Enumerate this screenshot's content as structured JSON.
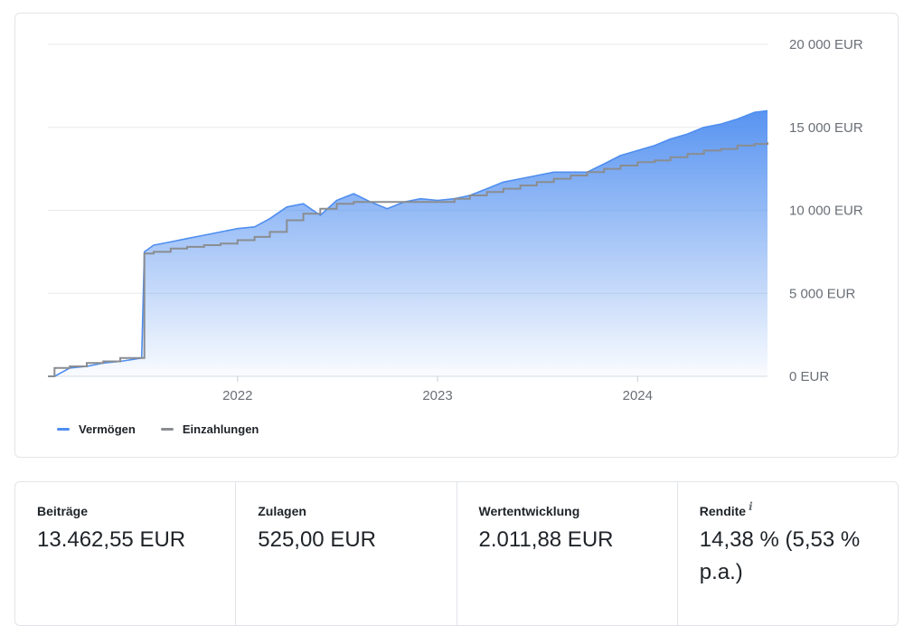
{
  "chart_data": {
    "type": "area",
    "title": "",
    "xlabel": "",
    "ylabel": "",
    "ylim": [
      0,
      20000
    ],
    "xlim": [
      "2021-01-20",
      "2024-08-25"
    ],
    "y_tick_labels": [
      "0 EUR",
      "5 000 EUR",
      "10 000 EUR",
      "15 000 EUR",
      "20 000 EUR"
    ],
    "y_ticks": [
      0,
      5000,
      10000,
      15000,
      20000
    ],
    "x_tick_labels": [
      "2022",
      "2023",
      "2024"
    ],
    "x_ticks": [
      "2022-01-01",
      "2023-01-01",
      "2024-01-01"
    ],
    "grid": "horizontal",
    "legend_placement": "bottom-left",
    "series": [
      {
        "name": "Vermögen",
        "style": "area",
        "color": "#4f8ef0",
        "x": [
          "2021-02-01",
          "2021-03-01",
          "2021-04-01",
          "2021-05-01",
          "2021-06-01",
          "2021-07-10",
          "2021-07-15",
          "2021-08-01",
          "2021-09-01",
          "2021-10-01",
          "2021-11-01",
          "2021-12-01",
          "2022-01-01",
          "2022-02-01",
          "2022-03-01",
          "2022-04-01",
          "2022-05-01",
          "2022-06-01",
          "2022-07-01",
          "2022-08-01",
          "2022-09-01",
          "2022-10-01",
          "2022-11-01",
          "2022-12-01",
          "2023-01-01",
          "2023-02-01",
          "2023-03-01",
          "2023-04-01",
          "2023-05-01",
          "2023-06-01",
          "2023-07-01",
          "2023-08-01",
          "2023-09-01",
          "2023-10-01",
          "2023-11-01",
          "2023-12-01",
          "2024-01-01",
          "2024-02-01",
          "2024-03-01",
          "2024-04-01",
          "2024-05-01",
          "2024-06-01",
          "2024-07-01",
          "2024-08-01",
          "2024-08-25"
        ],
        "values": [
          0,
          500,
          600,
          800,
          900,
          1100,
          7500,
          7900,
          8100,
          8300,
          8500,
          8700,
          8900,
          9000,
          9500,
          10200,
          10400,
          9700,
          10600,
          11000,
          10500,
          10100,
          10500,
          10700,
          10600,
          10700,
          10900,
          11300,
          11700,
          11900,
          12100,
          12300,
          12300,
          12300,
          12800,
          13300,
          13600,
          13900,
          14300,
          14600,
          15000,
          15200,
          15500,
          15900,
          16000
        ]
      },
      {
        "name": "Einzahlungen",
        "style": "step-line",
        "color": "#8a8d91",
        "x": [
          "2021-01-20",
          "2021-02-01",
          "2021-03-01",
          "2021-04-01",
          "2021-05-01",
          "2021-06-01",
          "2021-07-15",
          "2021-08-01",
          "2021-09-01",
          "2021-10-01",
          "2021-11-01",
          "2021-12-01",
          "2022-01-01",
          "2022-02-01",
          "2022-03-01",
          "2022-04-01",
          "2022-05-01",
          "2022-06-01",
          "2022-07-01",
          "2022-08-01",
          "2022-09-01",
          "2022-10-01",
          "2022-11-01",
          "2022-12-01",
          "2023-01-01",
          "2023-02-01",
          "2023-03-01",
          "2023-04-01",
          "2023-05-01",
          "2023-06-01",
          "2023-07-01",
          "2023-08-01",
          "2023-09-01",
          "2023-10-01",
          "2023-11-01",
          "2023-12-01",
          "2024-01-01",
          "2024-02-01",
          "2024-03-01",
          "2024-04-01",
          "2024-05-01",
          "2024-06-01",
          "2024-07-01",
          "2024-08-01",
          "2024-08-25"
        ],
        "values": [
          0,
          500,
          600,
          800,
          900,
          1100,
          7400,
          7500,
          7700,
          7800,
          7900,
          8000,
          8200,
          8400,
          8700,
          9400,
          9800,
          10100,
          10400,
          10500,
          10500,
          10500,
          10500,
          10500,
          10500,
          10700,
          10900,
          11100,
          11300,
          11500,
          11700,
          11900,
          12100,
          12300,
          12500,
          12700,
          12900,
          13000,
          13200,
          13400,
          13600,
          13700,
          13900,
          14000,
          14100
        ]
      }
    ]
  },
  "stats": [
    {
      "label": "Beiträge",
      "value": "13.462,55 EUR"
    },
    {
      "label": "Zulagen",
      "value": "525,00 EUR"
    },
    {
      "label": "Wertentwicklung",
      "value": "2.011,88 EUR"
    },
    {
      "label": "Rendite",
      "value": "14,38 % (5,53 % p.a.)",
      "info_glyph": "i"
    }
  ]
}
